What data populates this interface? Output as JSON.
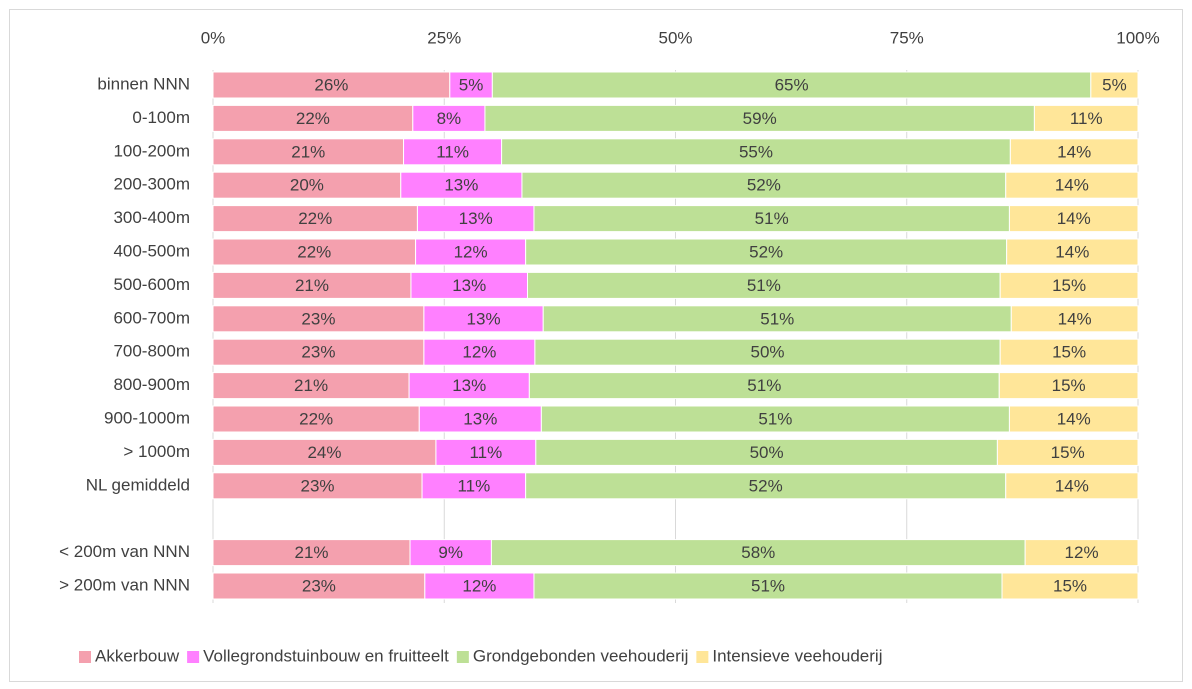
{
  "chart_data": {
    "type": "bar",
    "orientation": "horizontal",
    "stacked": true,
    "categories": [
      "binnen NNN",
      "0-100m",
      "100-200m",
      "200-300m",
      "300-400m",
      "400-500m",
      "500-600m",
      "600-700m",
      "700-800m",
      "800-900m",
      "900-1000m",
      "> 1000m",
      "NL gemiddeld",
      null,
      "< 200m van NNN",
      "> 200m van NNN"
    ],
    "series": [
      {
        "name": "Akkerbouw",
        "color": "#f4a0ae",
        "values": [
          25.6,
          21.6,
          20.6,
          20.3,
          22.1,
          21.9,
          21.4,
          22.8,
          22.8,
          21.2,
          22.3,
          24.1,
          22.6,
          null,
          21.3,
          22.9
        ],
        "value_labels": [
          "26%",
          "22%",
          "21%",
          "20%",
          "22%",
          "22%",
          "21%",
          "23%",
          "23%",
          "21%",
          "22%",
          "24%",
          "23%",
          null,
          "21%",
          "23%"
        ]
      },
      {
        "name": "Vollegrondstuinbouw en fruitteelt",
        "color": "#ff80ff",
        "values": [
          4.6,
          7.8,
          10.6,
          13.1,
          12.6,
          11.9,
          12.6,
          12.9,
          12.0,
          13.0,
          13.2,
          10.8,
          11.2,
          null,
          8.8,
          11.8
        ],
        "value_labels": [
          "5%",
          "8%",
          "11%",
          "13%",
          "13%",
          "12%",
          "13%",
          "13%",
          "12%",
          "13%",
          "13%",
          "11%",
          "11%",
          null,
          "9%",
          "12%"
        ]
      },
      {
        "name": "Grondgebonden veehouderij",
        "color": "#bde096",
        "values": [
          64.7,
          59.4,
          55.0,
          52.3,
          51.4,
          52.0,
          51.1,
          50.6,
          50.3,
          50.8,
          50.6,
          49.9,
          51.9,
          null,
          57.7,
          50.6
        ],
        "value_labels": [
          "65%",
          "59%",
          "55%",
          "52%",
          "51%",
          "52%",
          "51%",
          "51%",
          "50%",
          "51%",
          "51%",
          "50%",
          "52%",
          null,
          "58%",
          "51%"
        ]
      },
      {
        "name": "Intensieve veehouderij",
        "color": "#ffe699",
        "values": [
          5.1,
          11.2,
          13.8,
          14.3,
          13.9,
          14.2,
          14.9,
          13.7,
          14.9,
          15.0,
          13.9,
          15.2,
          14.3,
          null,
          12.2,
          14.7
        ],
        "value_labels": [
          "5%",
          "11%",
          "14%",
          "14%",
          "14%",
          "14%",
          "15%",
          "14%",
          "15%",
          "15%",
          "14%",
          "15%",
          "14%",
          null,
          "12%",
          "15%"
        ]
      }
    ],
    "xlim": [
      0,
      100
    ],
    "xticks": [
      {
        "value": 0,
        "label": "0%"
      },
      {
        "value": 25,
        "label": "25%"
      },
      {
        "value": 50,
        "label": "50%"
      },
      {
        "value": 75,
        "label": "75%"
      },
      {
        "value": 100,
        "label": "100%"
      }
    ],
    "grid": true,
    "legend": "bottom"
  }
}
